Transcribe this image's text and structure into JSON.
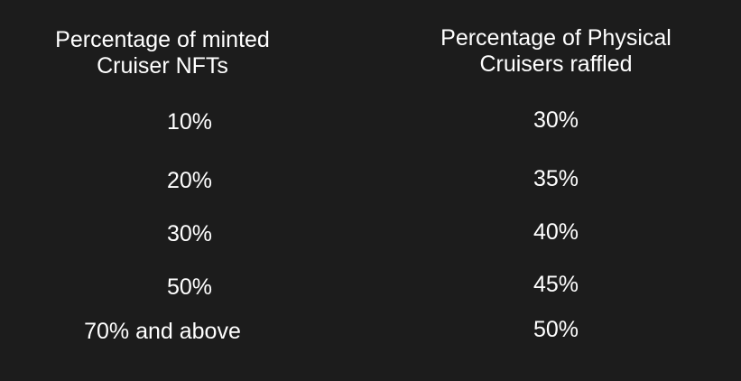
{
  "table": {
    "headers": [
      [
        "Percentage of minted",
        "Cruiser NFTs"
      ],
      [
        "Percentage of Physical",
        "Cruisers raffled"
      ]
    ],
    "rows": [
      [
        "10%",
        "30%"
      ],
      [
        "20%",
        "35%"
      ],
      [
        "30%",
        "40%"
      ],
      [
        "50%",
        "45%"
      ],
      [
        "70% and above",
        "50%"
      ]
    ]
  }
}
